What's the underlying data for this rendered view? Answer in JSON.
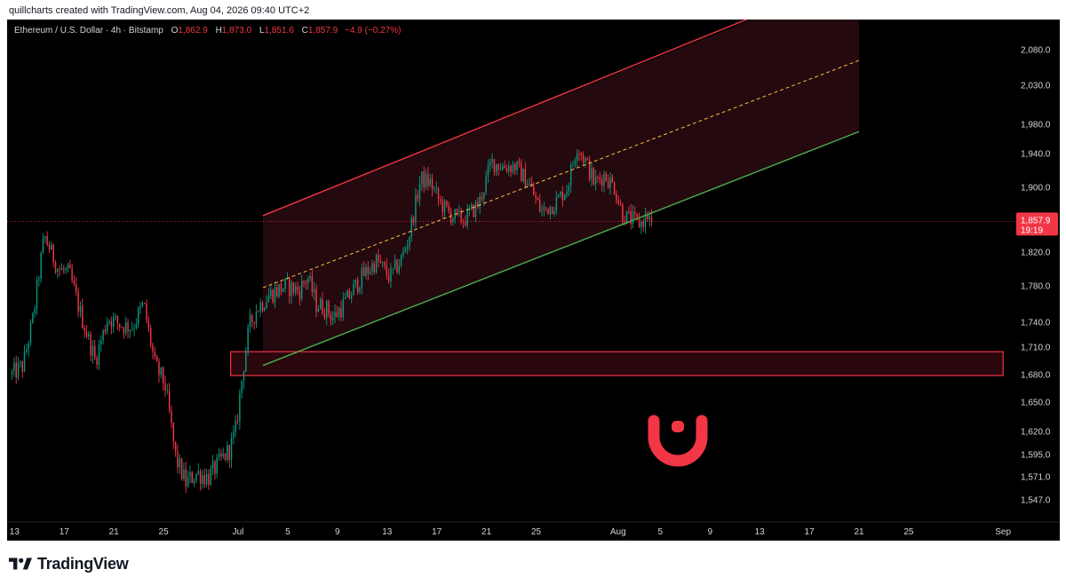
{
  "header": {
    "caption": "quillcharts created with TradingView.com, Aug 04, 2026 09:40 UTC+2"
  },
  "legend": {
    "symbol": "Ethereum / U.S. Dollar · 4h · Bitstamp",
    "open_key": "O",
    "open": "1,862.9",
    "high_key": "H",
    "high": "1,873.0",
    "low_key": "L",
    "low": "1,851.6",
    "close_key": "C",
    "close": "1,857.9",
    "change": "−4.9 (−0.27%)"
  },
  "price_tag": {
    "price": "1,857.9",
    "countdown": "19:19",
    "color": "#f23645"
  },
  "footer": {
    "brand": "TradingView"
  },
  "colors": {
    "background": "#000000",
    "up": "#089981",
    "down": "#f23645",
    "channel_upper": "#f23645",
    "channel_lower": "#4caf50",
    "channel_mid": "#f5c242",
    "channel_fill": "#2a0a10",
    "zone": "#f23645",
    "magnet": "#f23645"
  },
  "icons": {
    "logo": "tradingview-logo-icon",
    "magnet": "magnet-icon"
  },
  "chart_data": {
    "type": "candlestick",
    "symbol": "ETHUSD",
    "interval": "4h",
    "y_ticks": [
      2080,
      2030,
      1980,
      1940,
      1900,
      1820,
      1780,
      1740,
      1710,
      1680,
      1650,
      1620,
      1595,
      1571,
      1547
    ],
    "y_tick_labels": [
      "2,080.0",
      "2,030.0",
      "1,980.0",
      "1,940.0",
      "1,900.0",
      "1,820.0",
      "1,780.0",
      "1,740.0",
      "1,710.0",
      "1,680.0",
      "1,650.0",
      "1,620.0",
      "1,595.0",
      "1,571.0",
      "1,547.0"
    ],
    "x_tick_labels": [
      "13",
      "17",
      "21",
      "25",
      "Jul",
      "5",
      "9",
      "13",
      "17",
      "21",
      "25",
      "Aug",
      "5",
      "9",
      "13",
      "17",
      "21",
      "25",
      "Sep"
    ],
    "x_tick_days": [
      -18,
      -14,
      -10,
      -6,
      0,
      4,
      8,
      12,
      16,
      20,
      24,
      30.6,
      34,
      38,
      42,
      46,
      50,
      54,
      61.6
    ],
    "anchors": [
      [
        -18.2,
        1680
      ],
      [
        -17.3,
        1690
      ],
      [
        -16.5,
        1745
      ],
      [
        -15.6,
        1840
      ],
      [
        -14.5,
        1800
      ],
      [
        -13.6,
        1795
      ],
      [
        -12.6,
        1745
      ],
      [
        -11.5,
        1695
      ],
      [
        -10.5,
        1745
      ],
      [
        -9.2,
        1735
      ],
      [
        -8.5,
        1735
      ],
      [
        -7.6,
        1760
      ],
      [
        -6.7,
        1690
      ],
      [
        -5.9,
        1670
      ],
      [
        -5.0,
        1590
      ],
      [
        -4.2,
        1565
      ],
      [
        -3.3,
        1575
      ],
      [
        -2.4,
        1570
      ],
      [
        -1.3,
        1590
      ],
      [
        -0.7,
        1600
      ],
      [
        -0.2,
        1620
      ],
      [
        0.4,
        1685
      ],
      [
        0.9,
        1735
      ],
      [
        1.5,
        1755
      ],
      [
        2.5,
        1770
      ],
      [
        3.8,
        1780
      ],
      [
        4.9,
        1775
      ],
      [
        5.6,
        1790
      ],
      [
        6.3,
        1760
      ],
      [
        7.1,
        1755
      ],
      [
        7.7,
        1745
      ],
      [
        8.8,
        1765
      ],
      [
        9.9,
        1790
      ],
      [
        11.2,
        1810
      ],
      [
        12.2,
        1790
      ],
      [
        13.1,
        1810
      ],
      [
        13.7,
        1835
      ],
      [
        14.7,
        1910
      ],
      [
        15.5,
        1905
      ],
      [
        16.3,
        1880
      ],
      [
        17.2,
        1865
      ],
      [
        18.2,
        1860
      ],
      [
        19.4,
        1880
      ],
      [
        20.4,
        1930
      ],
      [
        21.3,
        1925
      ],
      [
        22.3,
        1925
      ],
      [
        23.4,
        1905
      ],
      [
        24.4,
        1870
      ],
      [
        25.5,
        1880
      ],
      [
        26.5,
        1900
      ],
      [
        27.3,
        1950
      ],
      [
        28.0,
        1930
      ],
      [
        28.7,
        1905
      ],
      [
        29.5,
        1915
      ],
      [
        30.3,
        1900
      ],
      [
        31.0,
        1865
      ],
      [
        31.7,
        1860
      ],
      [
        32.4,
        1855
      ],
      [
        33.0,
        1865
      ],
      [
        33.4,
        1858
      ]
    ],
    "last": {
      "open": 1862.9,
      "high": 1873.0,
      "low": 1851.6,
      "close": 1857.9,
      "change": -4.9,
      "change_pct": -0.27
    },
    "channel": {
      "upper": [
        [
          2.0,
          1865
        ],
        [
          42.0,
          2130
        ]
      ],
      "lower": [
        [
          2.0,
          1690
        ],
        [
          50.0,
          1970
        ]
      ],
      "mid": [
        [
          2.0,
          1778
        ],
        [
          50.0,
          2065
        ]
      ],
      "fill_end_day": 50
    },
    "zone": {
      "from_day": -0.6,
      "to_day": 61.6,
      "low": 1679,
      "high": 1705
    },
    "xlim_days": [
      -18.4,
      62.2
    ],
    "grid": false
  }
}
